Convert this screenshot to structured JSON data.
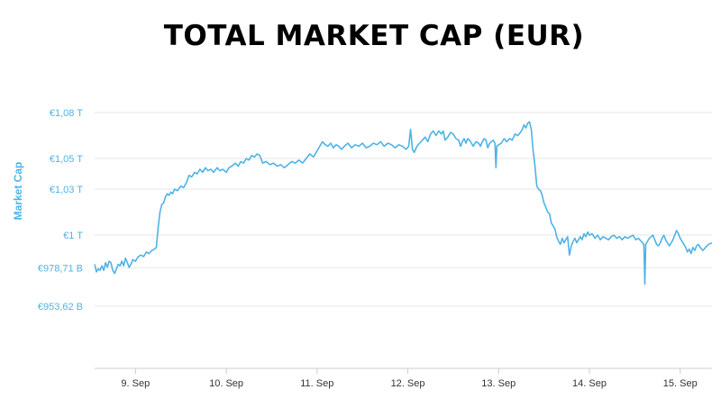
{
  "chart_data": {
    "type": "line",
    "title": "TOTAL MARKET CAP (EUR)",
    "ylabel": "Market Cap",
    "xlabel": "",
    "y_ticks": [
      {
        "value": 1080,
        "label": "€1,08 T"
      },
      {
        "value": 1050,
        "label": "€1,05 T"
      },
      {
        "value": 1030,
        "label": "€1,03 T"
      },
      {
        "value": 1000,
        "label": "€1 T"
      },
      {
        "value": 978.71,
        "label": "€978,71 B"
      },
      {
        "value": 953.62,
        "label": "€953,62 B"
      }
    ],
    "x_ticks": [
      {
        "value": 9,
        "label": "9. Sep"
      },
      {
        "value": 10,
        "label": "10. Sep"
      },
      {
        "value": 11,
        "label": "11. Sep"
      },
      {
        "value": 12,
        "label": "12. Sep"
      },
      {
        "value": 13,
        "label": "13. Sep"
      },
      {
        "value": 14,
        "label": "14. Sep"
      },
      {
        "value": 15,
        "label": "15. Sep"
      }
    ],
    "xlim": [
      8.55,
      15.35
    ],
    "ylim": [
      913,
      1090
    ],
    "grid": true,
    "colors": {
      "line": "#4fb3e6",
      "axis_text": "#4fb3e6",
      "grid": "#e6e6e6"
    },
    "series": [
      {
        "name": "",
        "points": [
          [
            8.55,
            981
          ],
          [
            8.57,
            976
          ],
          [
            8.59,
            978
          ],
          [
            8.61,
            977
          ],
          [
            8.63,
            980
          ],
          [
            8.65,
            977
          ],
          [
            8.67,
            982
          ],
          [
            8.69,
            979
          ],
          [
            8.71,
            983
          ],
          [
            8.73,
            982
          ],
          [
            8.75,
            977
          ],
          [
            8.77,
            975
          ],
          [
            8.79,
            978
          ],
          [
            8.81,
            981
          ],
          [
            8.83,
            980
          ],
          [
            8.85,
            983
          ],
          [
            8.87,
            980
          ],
          [
            8.89,
            985
          ],
          [
            8.91,
            982
          ],
          [
            8.93,
            979
          ],
          [
            8.95,
            981
          ],
          [
            8.97,
            984
          ],
          [
            9.0,
            983
          ],
          [
            9.03,
            986
          ],
          [
            9.06,
            987
          ],
          [
            9.09,
            986
          ],
          [
            9.12,
            989
          ],
          [
            9.15,
            988
          ],
          [
            9.18,
            990
          ],
          [
            9.21,
            991
          ],
          [
            9.23,
            992
          ],
          [
            9.25,
            1005
          ],
          [
            9.27,
            1015
          ],
          [
            9.29,
            1020
          ],
          [
            9.31,
            1021
          ],
          [
            9.33,
            1025
          ],
          [
            9.35,
            1027
          ],
          [
            9.37,
            1026
          ],
          [
            9.39,
            1028
          ],
          [
            9.41,
            1027
          ],
          [
            9.43,
            1030
          ],
          [
            9.46,
            1029
          ],
          [
            9.5,
            1032
          ],
          [
            9.53,
            1031
          ],
          [
            9.56,
            1034
          ],
          [
            9.59,
            1039
          ],
          [
            9.62,
            1038
          ],
          [
            9.65,
            1041
          ],
          [
            9.68,
            1040
          ],
          [
            9.71,
            1043
          ],
          [
            9.74,
            1041
          ],
          [
            9.77,
            1044
          ],
          [
            9.8,
            1042
          ],
          [
            9.83,
            1043
          ],
          [
            9.86,
            1041
          ],
          [
            9.9,
            1044
          ],
          [
            9.93,
            1042
          ],
          [
            9.96,
            1043
          ],
          [
            10.0,
            1041
          ],
          [
            10.03,
            1044
          ],
          [
            10.06,
            1045
          ],
          [
            10.1,
            1047
          ],
          [
            10.13,
            1045
          ],
          [
            10.16,
            1048
          ],
          [
            10.19,
            1047
          ],
          [
            10.22,
            1050
          ],
          [
            10.25,
            1049
          ],
          [
            10.28,
            1052
          ],
          [
            10.31,
            1051
          ],
          [
            10.34,
            1053
          ],
          [
            10.37,
            1052
          ],
          [
            10.4,
            1047
          ],
          [
            10.44,
            1048
          ],
          [
            10.48,
            1046
          ],
          [
            10.52,
            1047
          ],
          [
            10.56,
            1045
          ],
          [
            10.6,
            1046
          ],
          [
            10.64,
            1044
          ],
          [
            10.68,
            1046
          ],
          [
            10.72,
            1048
          ],
          [
            10.76,
            1047
          ],
          [
            10.8,
            1049
          ],
          [
            10.84,
            1047
          ],
          [
            10.88,
            1050
          ],
          [
            10.92,
            1053
          ],
          [
            10.96,
            1051
          ],
          [
            11.0,
            1055
          ],
          [
            11.03,
            1058
          ],
          [
            11.06,
            1061
          ],
          [
            11.09,
            1059
          ],
          [
            11.12,
            1058
          ],
          [
            11.15,
            1060
          ],
          [
            11.18,
            1057
          ],
          [
            11.21,
            1059
          ],
          [
            11.24,
            1058
          ],
          [
            11.27,
            1056
          ],
          [
            11.3,
            1058
          ],
          [
            11.34,
            1060
          ],
          [
            11.38,
            1057
          ],
          [
            11.42,
            1059
          ],
          [
            11.46,
            1058
          ],
          [
            11.5,
            1060
          ],
          [
            11.54,
            1057
          ],
          [
            11.58,
            1058
          ],
          [
            11.62,
            1060
          ],
          [
            11.66,
            1059
          ],
          [
            11.7,
            1061
          ],
          [
            11.74,
            1058
          ],
          [
            11.78,
            1060
          ],
          [
            11.82,
            1059
          ],
          [
            11.86,
            1057
          ],
          [
            11.9,
            1059
          ],
          [
            11.94,
            1058
          ],
          [
            11.98,
            1056
          ],
          [
            12.01,
            1058
          ],
          [
            12.03,
            1069
          ],
          [
            12.05,
            1056
          ],
          [
            12.07,
            1054
          ],
          [
            12.1,
            1058
          ],
          [
            12.13,
            1060
          ],
          [
            12.16,
            1062
          ],
          [
            12.19,
            1064
          ],
          [
            12.22,
            1061
          ],
          [
            12.25,
            1066
          ],
          [
            12.28,
            1068
          ],
          [
            12.31,
            1065
          ],
          [
            12.34,
            1068
          ],
          [
            12.37,
            1066
          ],
          [
            12.39,
            1068
          ],
          [
            12.41,
            1062
          ],
          [
            12.44,
            1064
          ],
          [
            12.47,
            1067
          ],
          [
            12.5,
            1066
          ],
          [
            12.53,
            1063
          ],
          [
            12.56,
            1062
          ],
          [
            12.58,
            1058
          ],
          [
            12.6,
            1061
          ],
          [
            12.62,
            1063
          ],
          [
            12.64,
            1060
          ],
          [
            12.66,
            1063
          ],
          [
            12.68,
            1062
          ],
          [
            12.7,
            1060
          ],
          [
            12.72,
            1058
          ],
          [
            12.75,
            1061
          ],
          [
            12.78,
            1060
          ],
          [
            12.8,
            1058
          ],
          [
            12.82,
            1061
          ],
          [
            12.84,
            1063
          ],
          [
            12.86,
            1062
          ],
          [
            12.88,
            1057
          ],
          [
            12.9,
            1060
          ],
          [
            12.92,
            1061
          ],
          [
            12.94,
            1062
          ],
          [
            12.96,
            1060
          ],
          [
            12.97,
            1044
          ],
          [
            12.98,
            1058
          ],
          [
            13.0,
            1059
          ],
          [
            13.03,
            1060
          ],
          [
            13.06,
            1063
          ],
          [
            13.09,
            1061
          ],
          [
            13.12,
            1063
          ],
          [
            13.15,
            1062
          ],
          [
            13.18,
            1066
          ],
          [
            13.21,
            1065
          ],
          [
            13.24,
            1067
          ],
          [
            13.26,
            1069
          ],
          [
            13.28,
            1072
          ],
          [
            13.3,
            1070
          ],
          [
            13.32,
            1073
          ],
          [
            13.34,
            1074
          ],
          [
            13.36,
            1069
          ],
          [
            13.38,
            1055
          ],
          [
            13.4,
            1045
          ],
          [
            13.42,
            1032
          ],
          [
            13.44,
            1030
          ],
          [
            13.46,
            1029
          ],
          [
            13.48,
            1026
          ],
          [
            13.5,
            1021
          ],
          [
            13.52,
            1018
          ],
          [
            13.54,
            1015
          ],
          [
            13.56,
            1014
          ],
          [
            13.58,
            1008
          ],
          [
            13.6,
            1006
          ],
          [
            13.62,
            1004
          ],
          [
            13.64,
            999
          ],
          [
            13.66,
            996
          ],
          [
            13.68,
            994
          ],
          [
            13.7,
            998
          ],
          [
            13.72,
            995
          ],
          [
            13.74,
            997
          ],
          [
            13.76,
            999
          ],
          [
            13.78,
            987
          ],
          [
            13.8,
            993
          ],
          [
            13.82,
            996
          ],
          [
            13.84,
            998
          ],
          [
            13.86,
            995
          ],
          [
            13.88,
            997
          ],
          [
            13.9,
            999
          ],
          [
            13.92,
            997
          ],
          [
            13.94,
            1001
          ],
          [
            13.96,
            999
          ],
          [
            13.98,
            1002
          ],
          [
            14.0,
            1000
          ],
          [
            14.03,
            1001
          ],
          [
            14.06,
            998
          ],
          [
            14.09,
            1000
          ],
          [
            14.12,
            997
          ],
          [
            14.15,
            999
          ],
          [
            14.18,
            998
          ],
          [
            14.21,
            997
          ],
          [
            14.24,
            999
          ],
          [
            14.27,
            1000
          ],
          [
            14.3,
            998
          ],
          [
            14.33,
            999
          ],
          [
            14.36,
            997
          ],
          [
            14.39,
            999
          ],
          [
            14.42,
            998
          ],
          [
            14.45,
            999
          ],
          [
            14.48,
            1000
          ],
          [
            14.51,
            997
          ],
          [
            14.54,
            998
          ],
          [
            14.57,
            996
          ],
          [
            14.6,
            994
          ],
          [
            14.61,
            968
          ],
          [
            14.62,
            994
          ],
          [
            14.64,
            996
          ],
          [
            14.66,
            998
          ],
          [
            14.68,
            999
          ],
          [
            14.7,
            1000
          ],
          [
            14.72,
            997
          ],
          [
            14.74,
            994
          ],
          [
            14.76,
            993
          ],
          [
            14.78,
            995
          ],
          [
            14.8,
            998
          ],
          [
            14.82,
            1000
          ],
          [
            14.84,
            997
          ],
          [
            14.86,
            995
          ],
          [
            14.88,
            993
          ],
          [
            14.9,
            995
          ],
          [
            14.92,
            997
          ],
          [
            14.94,
            1000
          ],
          [
            14.96,
            1003
          ],
          [
            14.98,
            1001
          ],
          [
            15.0,
            998
          ],
          [
            15.02,
            996
          ],
          [
            15.04,
            994
          ],
          [
            15.06,
            992
          ],
          [
            15.08,
            989
          ],
          [
            15.1,
            991
          ],
          [
            15.12,
            988
          ],
          [
            15.14,
            992
          ],
          [
            15.16,
            990
          ],
          [
            15.18,
            993
          ],
          [
            15.2,
            994
          ],
          [
            15.22,
            992
          ],
          [
            15.25,
            990
          ],
          [
            15.28,
            992
          ],
          [
            15.31,
            994
          ],
          [
            15.35,
            995
          ]
        ]
      }
    ]
  }
}
